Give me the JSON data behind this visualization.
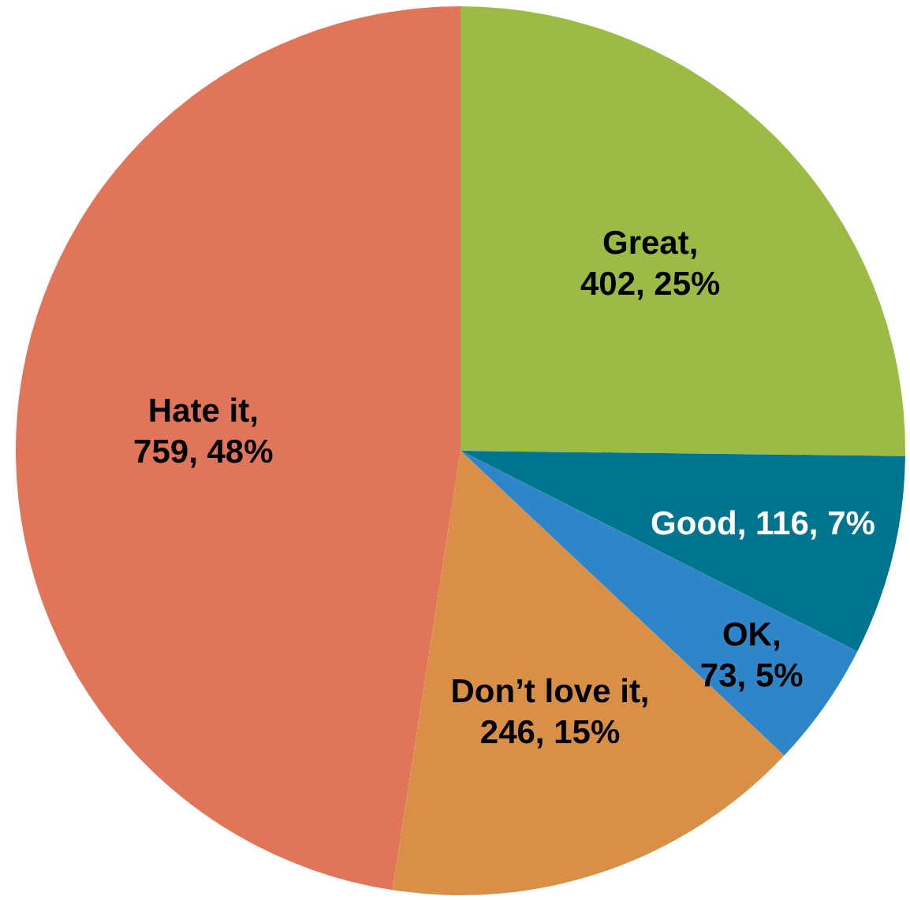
{
  "chart_data": {
    "type": "pie",
    "categories": [
      "Great",
      "Good",
      "OK",
      "Don’t love it",
      "Hate it"
    ],
    "values": [
      402,
      116,
      73,
      246,
      759
    ],
    "colors": [
      "#9bbb45",
      "#00758f",
      "#2e86c8",
      "#d98f45",
      "#e07559"
    ],
    "value_labels": [
      ",\n402, 25%",
      ", 116, 7%",
      ",\n73, 5%",
      ",\n246, 15%",
      ",\n759, 48%"
    ]
  }
}
